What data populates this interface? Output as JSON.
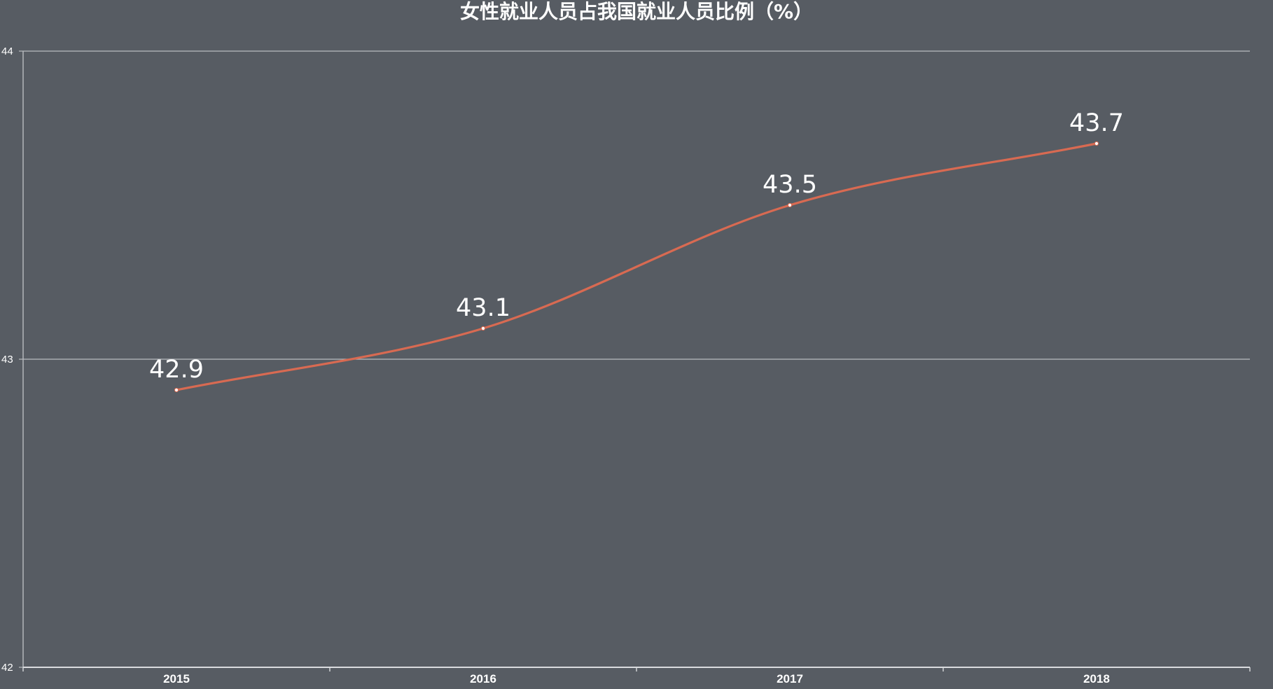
{
  "chart_data": {
    "type": "line",
    "title": "女性就业人员占我国就业人员比例（%）",
    "xlabel": "",
    "ylabel": "",
    "categories": [
      "2015",
      "2016",
      "2017",
      "2018"
    ],
    "series": [
      {
        "values": [
          42.9,
          43.1,
          43.5,
          43.7
        ]
      }
    ],
    "data_labels": [
      "42.9",
      "43.1",
      "43.5",
      "43.7"
    ],
    "ylim": [
      42,
      44
    ],
    "yticks": [
      "42",
      "43",
      "44"
    ],
    "grid": true,
    "smooth": true,
    "line_color": "#d86a52",
    "point_color": "#ffffff",
    "background": "#575c63"
  }
}
